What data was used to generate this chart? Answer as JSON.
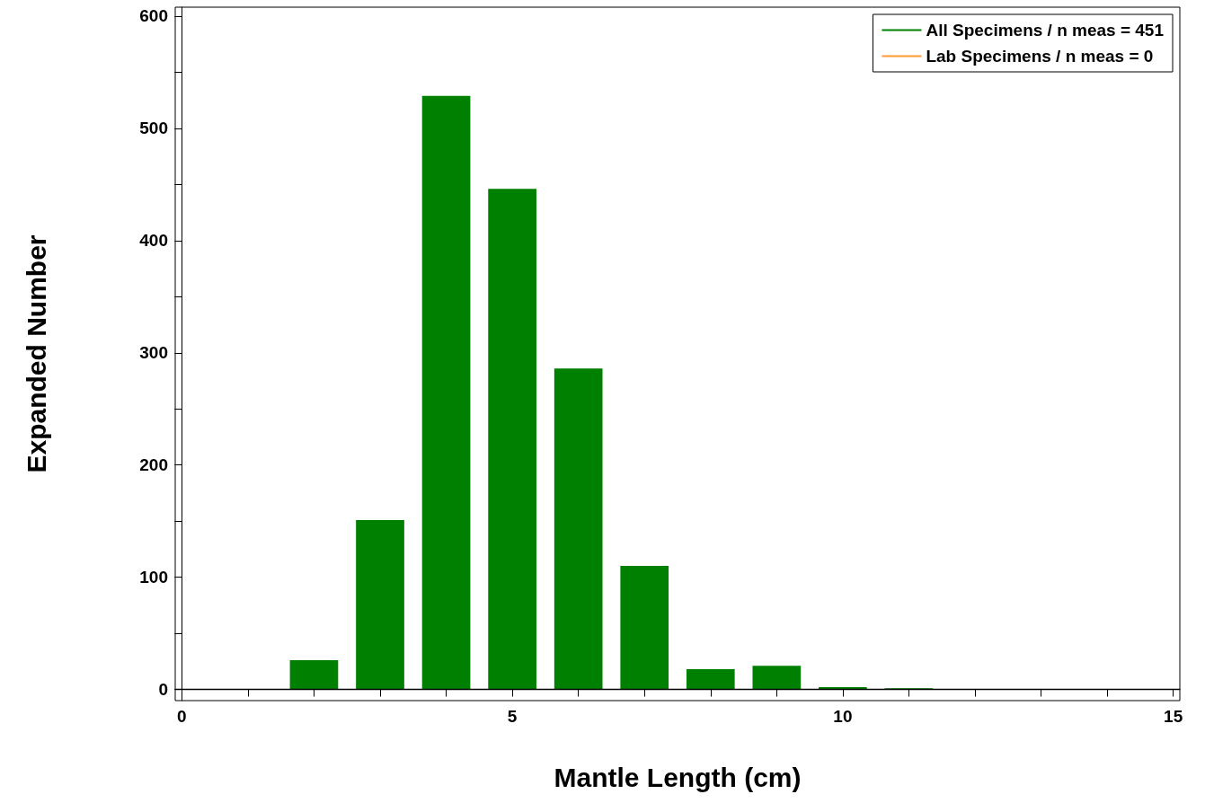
{
  "chart_data": {
    "type": "bar",
    "xlabel": "Mantle Length (cm)",
    "ylabel": "Expanded Number",
    "x": [
      2,
      3,
      4,
      5,
      6,
      7,
      8,
      9,
      10,
      11
    ],
    "series": [
      {
        "name": "All Specimens / n meas = 451",
        "color": "#008000",
        "values": [
          26,
          151,
          529,
          446,
          286,
          110,
          18,
          21,
          2,
          1
        ]
      },
      {
        "name": "Lab Specimens / n meas = 0",
        "color": "#ff9933",
        "values": [
          0,
          0,
          0,
          0,
          0,
          0,
          0,
          0,
          0,
          0
        ]
      }
    ],
    "xlim": [
      -0.1,
      15.1
    ],
    "xticks": [
      0,
      {
        "value": 1,
        "label": null
      },
      {
        "value": 2,
        "label": null
      },
      {
        "value": 3,
        "label": null
      },
      {
        "value": 4,
        "label": null
      },
      5,
      {
        "value": 6,
        "label": null
      },
      {
        "value": 7,
        "label": null
      },
      {
        "value": 8,
        "label": null
      },
      {
        "value": 9,
        "label": null
      },
      10,
      {
        "value": 11,
        "label": null
      },
      {
        "value": 12,
        "label": null
      },
      {
        "value": 13,
        "label": null
      },
      {
        "value": 14,
        "label": null
      },
      15
    ],
    "ylim": [
      -10,
      608
    ],
    "yticks": [
      0,
      {
        "value": 50,
        "label": null
      },
      100,
      {
        "value": 150,
        "label": null
      },
      200,
      {
        "value": 250,
        "label": null
      },
      300,
      {
        "value": 350,
        "label": null
      },
      400,
      {
        "value": 450,
        "label": null
      },
      500,
      {
        "value": 550,
        "label": null
      },
      600
    ],
    "ref_lines": [
      {
        "axis": "y",
        "value": 0,
        "color": "#000000"
      }
    ],
    "legend": "top right"
  }
}
